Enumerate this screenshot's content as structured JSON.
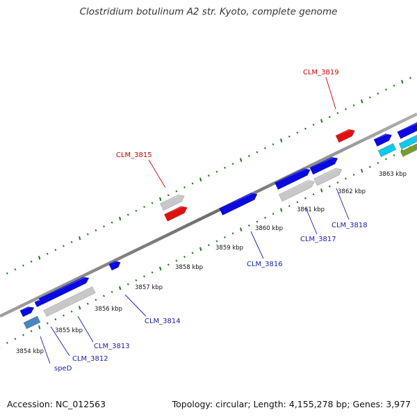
{
  "title": "Clostridium botulinum A2 str. Kyoto, complete genome",
  "footer": {
    "accession": "Accession: NC_012563",
    "topology": "Topology: circular; Length: 4,155,278 bp; Genes: 3,977"
  },
  "kbp_ticks": [
    "3854 kbp",
    "3855 kbp",
    "3856 kbp",
    "3857 kbp",
    "3858 kbp",
    "3859 kbp",
    "3860 kbp",
    "3861 kbp",
    "3862 kbp",
    "3863 kbp"
  ],
  "gene_labels": [
    {
      "text": "CLM_3819",
      "color": "#cc0000"
    },
    {
      "text": "CLM_3815",
      "color": "#cc0000"
    },
    {
      "text": "CLM_3818",
      "color": "#1a1aaa"
    },
    {
      "text": "CLM_3817",
      "color": "#1a1aaa"
    },
    {
      "text": "CLM_3816",
      "color": "#1a1aaa"
    },
    {
      "text": "CLM_3814",
      "color": "#1a1aaa"
    },
    {
      "text": "CLM_3813",
      "color": "#1a1aaa"
    },
    {
      "text": "CLM_3812",
      "color": "#1a1aaa"
    },
    {
      "text": "speD",
      "color": "#1a1aaa"
    }
  ],
  "colors": {
    "backbone": "#888888",
    "tick": "#1e7a1e",
    "forward_cds": "#0a0ae0",
    "reverse_cds": "#e01010",
    "gray_feature": "#c8c8c8",
    "cyan_feature": "#10c8e8",
    "olive_feature": "#7a9a2a",
    "steel_feature": "#4a86c0"
  }
}
